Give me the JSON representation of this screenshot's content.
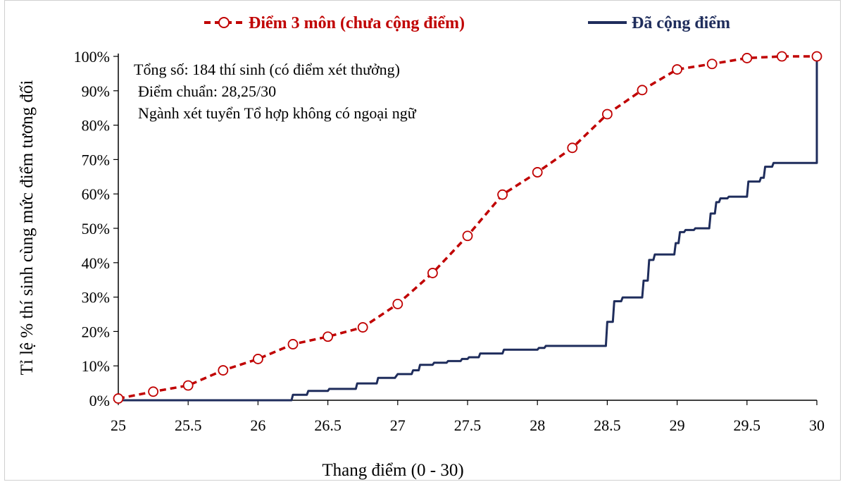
{
  "chart_data": {
    "type": "line",
    "xlabel": "Thang điểm (0 - 30)",
    "ylabel": "Tỉ lệ % thí sinh cùng mức điểm tương đối",
    "xlim": [
      25,
      30
    ],
    "ylim": [
      0,
      100
    ],
    "x_ticks": [
      "25",
      "25.5",
      "26",
      "26.5",
      "27",
      "27.5",
      "28",
      "28.5",
      "29",
      "29.5",
      "30"
    ],
    "y_ticks": [
      "0%",
      "10%",
      "20%",
      "30%",
      "40%",
      "50%",
      "60%",
      "70%",
      "80%",
      "90%",
      "100%"
    ],
    "legend_position": "top",
    "annotations": [
      "Tổng số: 184 thí sinh  (có điểm xét thưởng)",
      "Điểm chuẩn: 28,25/30",
      "Ngành xét tuyển Tổ hợp không có ngoại ngữ"
    ],
    "series": [
      {
        "name": "Điểm 3 môn (chưa cộng điểm)",
        "style": "dashed-with-circle-markers",
        "color": "#c00000",
        "x": [
          25,
          25.25,
          25.5,
          25.75,
          26,
          26.25,
          26.5,
          26.75,
          27,
          27.25,
          27.5,
          27.75,
          28,
          28.25,
          28.5,
          28.75,
          29,
          29.25,
          29.5,
          29.75,
          30
        ],
        "y": [
          0.5,
          2.5,
          4.3,
          8.7,
          12.0,
          16.3,
          18.5,
          21.2,
          28.0,
          37.0,
          47.8,
          59.8,
          66.3,
          73.4,
          83.2,
          90.2,
          96.2,
          97.8,
          99.5,
          100,
          100
        ]
      },
      {
        "name": "Đã cộng điểm",
        "style": "solid-step",
        "color": "#1f2d5c",
        "x": [
          25,
          26.24,
          26.25,
          26.35,
          26.36,
          26.5,
          26.51,
          26.7,
          26.71,
          26.85,
          26.86,
          26.98,
          27.0,
          27.1,
          27.11,
          27.15,
          27.16,
          27.25,
          27.26,
          27.35,
          27.36,
          27.45,
          27.46,
          27.5,
          27.51,
          27.58,
          27.59,
          27.75,
          27.76,
          28.0,
          28.01,
          28.05,
          28.06,
          28.49,
          28.5,
          28.54,
          28.55,
          28.6,
          28.61,
          28.75,
          28.76,
          28.79,
          28.8,
          28.83,
          28.84,
          28.98,
          28.99,
          29.01,
          29.02,
          29.05,
          29.06,
          29.12,
          29.13,
          29.23,
          29.24,
          29.27,
          29.28,
          29.3,
          29.31,
          29.36,
          29.37,
          29.5,
          29.51,
          29.59,
          29.6,
          29.62,
          29.63,
          29.68,
          29.69,
          29.99,
          30.0,
          30.0
        ],
        "y": [
          0,
          0,
          1.6,
          1.6,
          2.7,
          2.7,
          3.3,
          3.3,
          4.9,
          4.9,
          6.5,
          6.5,
          7.6,
          7.6,
          8.7,
          8.7,
          10.3,
          10.3,
          10.9,
          10.9,
          11.4,
          11.4,
          12.0,
          12.0,
          12.5,
          12.5,
          13.6,
          13.6,
          14.7,
          14.7,
          15.2,
          15.2,
          15.8,
          15.8,
          22.8,
          22.8,
          28.8,
          28.8,
          29.9,
          29.9,
          34.8,
          34.8,
          40.8,
          40.8,
          42.4,
          42.4,
          45.7,
          45.7,
          48.9,
          48.9,
          49.5,
          49.5,
          50.0,
          50.0,
          54.3,
          54.3,
          57.6,
          57.6,
          58.7,
          58.7,
          59.2,
          59.2,
          63.6,
          63.6,
          64.7,
          64.7,
          67.9,
          67.9,
          69.0,
          69.0,
          69.0,
          100
        ]
      }
    ]
  }
}
